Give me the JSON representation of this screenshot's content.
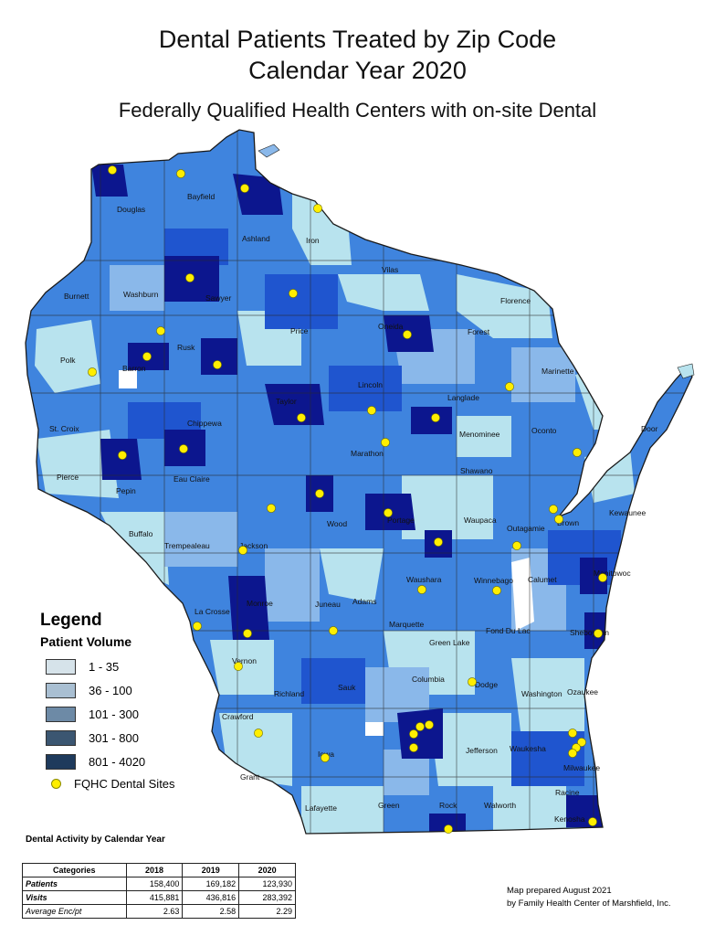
{
  "title": {
    "line1": "Dental Patients Treated by Zip Code",
    "line2": "Calendar Year 2020",
    "subtitle": "Federally Qualified Health Centers with on-site Dental"
  },
  "colors": {
    "vol_1_35": "#b8e3ee",
    "vol_36_100": "#8ab8ea",
    "vol_101_300": "#3f84de",
    "vol_301_800": "#1f55cf",
    "vol_801_4020": "#0c168e",
    "site_dot": "#ffee00"
  },
  "legend": {
    "title": "Legend",
    "subtitle": "Patient Volume",
    "ranges": [
      {
        "label": "1 - 35",
        "color": "#d6e3ea"
      },
      {
        "label": "36 - 100",
        "color": "#a9bfd2"
      },
      {
        "label": "101 - 300",
        "color": "#6d8aa6"
      },
      {
        "label": "301 - 800",
        "color": "#3b5671"
      },
      {
        "label": "801 - 4020",
        "color": "#1e3a5c"
      }
    ],
    "sites_label": "FQHC Dental Sites"
  },
  "counties": [
    "Douglas",
    "Bayfield",
    "Ashland",
    "Iron",
    "Vilas",
    "Florence",
    "Burnett",
    "Washburn",
    "Sawyer",
    "Price",
    "Oneida",
    "Forest",
    "Marinette",
    "Polk",
    "Barron",
    "Rusk",
    "Lincoln",
    "Langlade",
    "Taylor",
    "Door",
    "St. Croix",
    "Chippewa",
    "Menominee",
    "Oconto",
    "Marathon",
    "Shawano",
    "Pierce",
    "Pepin",
    "Eau Claire",
    "Kewaunee",
    "Buffalo",
    "Wood",
    "Portage",
    "Waupaca",
    "Outagamie",
    "Brown",
    "Trempealeau",
    "Jackson",
    "Manitowoc",
    "Waushara",
    "Winnebago",
    "Calumet",
    "La Crosse",
    "Monroe",
    "Juneau",
    "Adams",
    "Marquette",
    "Fond Du Lac",
    "Sheboygan",
    "Green Lake",
    "Vernon",
    "Columbia",
    "Dodge",
    "Washington",
    "Ozaukee",
    "Richland",
    "Sauk",
    "Crawford",
    "Jefferson",
    "Waukesha",
    "Milwaukee",
    "Iowa",
    "Grant",
    "Racine",
    "Lafayette",
    "Green",
    "Rock",
    "Walworth",
    "Kenosha"
  ],
  "table": {
    "title": "Dental Activity by Calendar Year",
    "headers": [
      "Categories",
      "2018",
      "2019",
      "2020"
    ],
    "rows": [
      {
        "label": "Patients",
        "values": [
          "158,400",
          "169,182",
          "123,930"
        ]
      },
      {
        "label": "Visits",
        "values": [
          "415,881",
          "436,816",
          "283,392"
        ]
      },
      {
        "label": "Average Enc/pt",
        "values": [
          "2.63",
          "2.58",
          "2.29"
        ]
      }
    ]
  },
  "credit": {
    "line1": "Map prepared August 2021",
    "line2": "by Family Health Center of Marshfield, Inc."
  }
}
